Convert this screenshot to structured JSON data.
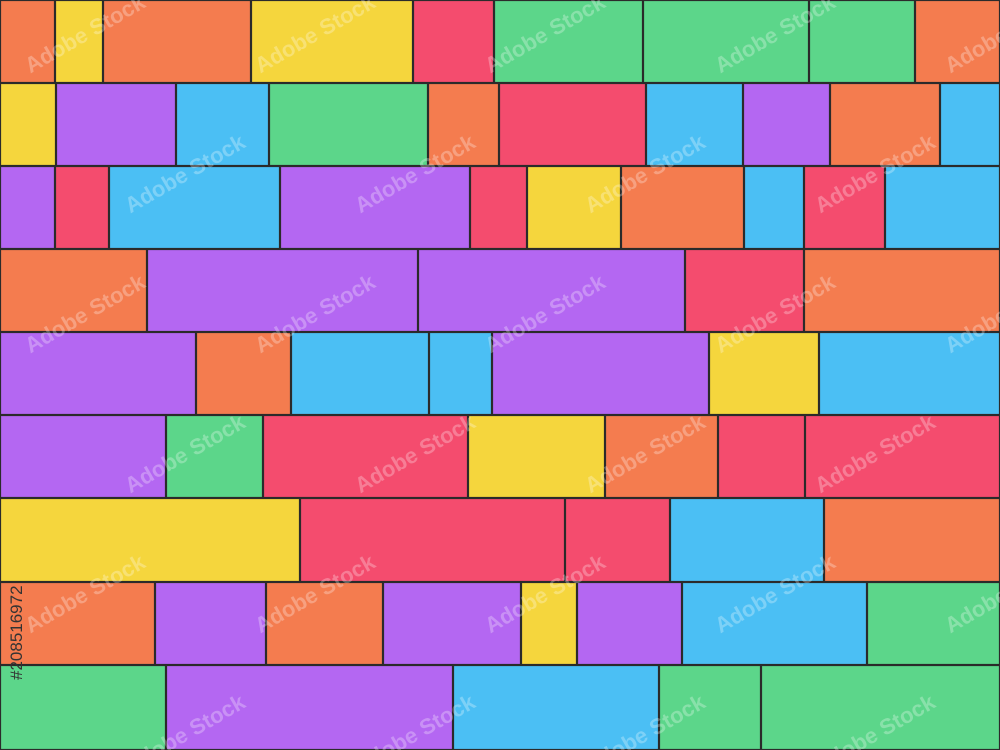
{
  "watermark": "Adobe Stock",
  "image_id": "#208516972"
}
